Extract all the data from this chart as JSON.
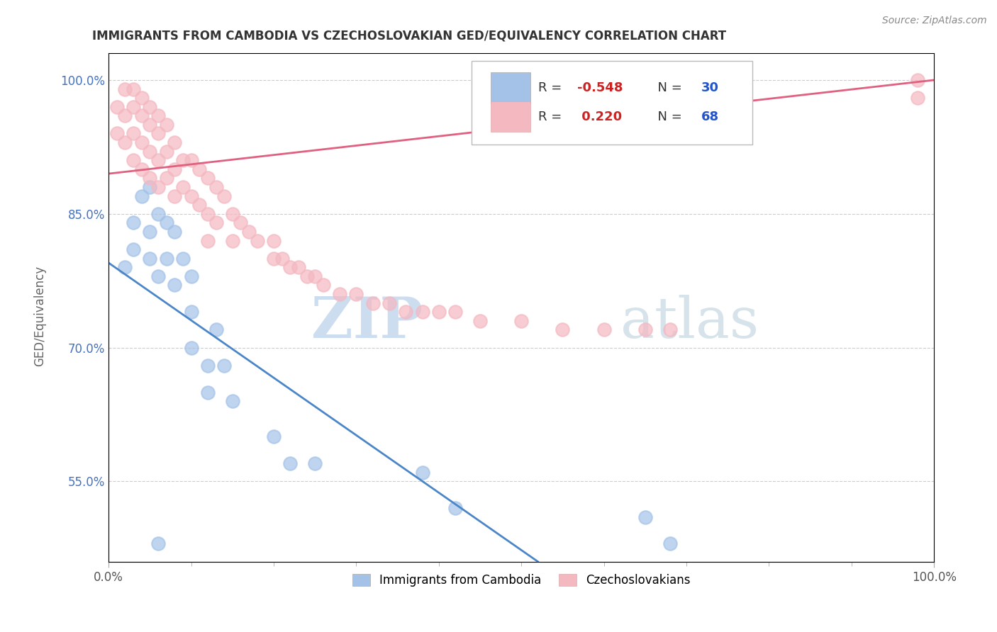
{
  "title": "IMMIGRANTS FROM CAMBODIA VS CZECHOSLOVAKIAN GED/EQUIVALENCY CORRELATION CHART",
  "source": "Source: ZipAtlas.com",
  "ylabel": "GED/Equivalency",
  "legend_label1": "Immigrants from Cambodia",
  "legend_label2": "Czechoslovakians",
  "r1": -0.548,
  "n1": 30,
  "r2": 0.22,
  "n2": 68,
  "color1": "#a4c2e8",
  "color2": "#f4b8c1",
  "line_color1": "#4a86c8",
  "line_color2": "#e06080",
  "xlim": [
    0.0,
    1.0
  ],
  "ylim": [
    0.46,
    1.03
  ],
  "yticks": [
    0.55,
    0.7,
    0.85,
    1.0
  ],
  "ytick_labels": [
    "55.0%",
    "70.0%",
    "85.0%",
    "100.0%"
  ],
  "xticks": [
    0.0,
    1.0
  ],
  "xtick_labels": [
    "0.0%",
    "100.0%"
  ],
  "watermark_zip": "ZIP",
  "watermark_atlas": "atlas",
  "blue_points_x": [
    0.02,
    0.03,
    0.03,
    0.04,
    0.05,
    0.05,
    0.05,
    0.06,
    0.06,
    0.07,
    0.07,
    0.08,
    0.08,
    0.09,
    0.1,
    0.1,
    0.12,
    0.12,
    0.13,
    0.14,
    0.15,
    0.2,
    0.22,
    0.25,
    0.38,
    0.42,
    0.65,
    0.68,
    0.1,
    0.06
  ],
  "blue_points_y": [
    0.79,
    0.84,
    0.81,
    0.87,
    0.88,
    0.83,
    0.8,
    0.85,
    0.78,
    0.84,
    0.8,
    0.83,
    0.77,
    0.8,
    0.78,
    0.74,
    0.68,
    0.65,
    0.72,
    0.68,
    0.64,
    0.6,
    0.57,
    0.57,
    0.56,
    0.52,
    0.51,
    0.48,
    0.7,
    0.48
  ],
  "pink_points_x": [
    0.01,
    0.01,
    0.02,
    0.02,
    0.02,
    0.03,
    0.03,
    0.03,
    0.03,
    0.04,
    0.04,
    0.04,
    0.04,
    0.05,
    0.05,
    0.05,
    0.05,
    0.06,
    0.06,
    0.06,
    0.06,
    0.07,
    0.07,
    0.07,
    0.08,
    0.08,
    0.08,
    0.09,
    0.09,
    0.1,
    0.1,
    0.11,
    0.11,
    0.12,
    0.12,
    0.12,
    0.13,
    0.13,
    0.14,
    0.15,
    0.15,
    0.16,
    0.17,
    0.18,
    0.2,
    0.2,
    0.21,
    0.22,
    0.23,
    0.24,
    0.25,
    0.26,
    0.28,
    0.3,
    0.32,
    0.34,
    0.36,
    0.38,
    0.4,
    0.42,
    0.45,
    0.5,
    0.55,
    0.6,
    0.65,
    0.68,
    0.98,
    0.98
  ],
  "pink_points_y": [
    0.97,
    0.94,
    0.99,
    0.96,
    0.93,
    0.99,
    0.97,
    0.94,
    0.91,
    0.98,
    0.96,
    0.93,
    0.9,
    0.97,
    0.95,
    0.92,
    0.89,
    0.96,
    0.94,
    0.91,
    0.88,
    0.95,
    0.92,
    0.89,
    0.93,
    0.9,
    0.87,
    0.91,
    0.88,
    0.91,
    0.87,
    0.9,
    0.86,
    0.89,
    0.85,
    0.82,
    0.88,
    0.84,
    0.87,
    0.85,
    0.82,
    0.84,
    0.83,
    0.82,
    0.82,
    0.8,
    0.8,
    0.79,
    0.79,
    0.78,
    0.78,
    0.77,
    0.76,
    0.76,
    0.75,
    0.75,
    0.74,
    0.74,
    0.74,
    0.74,
    0.73,
    0.73,
    0.72,
    0.72,
    0.72,
    0.72,
    1.0,
    0.98
  ],
  "bg_color": "#ffffff",
  "grid_color": "#cccccc",
  "title_color": "#333333",
  "source_color": "#888888",
  "ylabel_color": "#666666",
  "ytick_color": "#4472c4",
  "xtick_color": "#555555"
}
